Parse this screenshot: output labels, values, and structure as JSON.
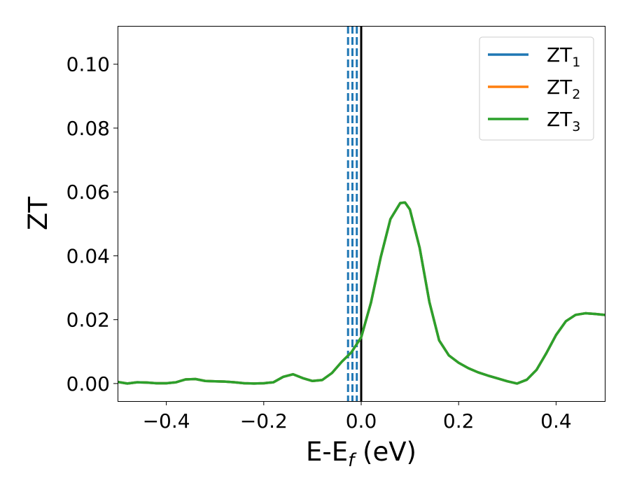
{
  "chart_data": {
    "type": "line",
    "xlabel": "E-E",
    "xlabel_subscript": "f",
    "xlabel_unit": " (eV)",
    "ylabel": "ZT",
    "xlim": [
      -0.5,
      0.5
    ],
    "ylim": [
      -0.0055,
      0.112
    ],
    "x_ticks": [
      -0.4,
      -0.2,
      0.0,
      0.2,
      0.4
    ],
    "x_tick_labels": [
      "−0.4",
      "−0.2",
      "0.0",
      "0.2",
      "0.4"
    ],
    "y_ticks": [
      0.0,
      0.02,
      0.04,
      0.06,
      0.08,
      0.1
    ],
    "y_tick_labels": [
      "0.00",
      "0.02",
      "0.04",
      "0.06",
      "0.08",
      "0.10"
    ],
    "grid": false,
    "legend_position": "top-right",
    "series": [
      {
        "name": "ZT",
        "subscript": "1",
        "color": "#1f77b4",
        "x": [
          -0.5,
          -0.48,
          -0.46,
          -0.44,
          -0.42,
          -0.4,
          -0.38,
          -0.36,
          -0.34,
          -0.32,
          -0.3,
          -0.28,
          -0.26,
          -0.24,
          -0.22,
          -0.2,
          -0.18,
          -0.16,
          -0.14,
          -0.12,
          -0.1,
          -0.08,
          -0.06,
          -0.04,
          -0.02,
          0.0,
          0.02,
          0.04,
          0.06,
          0.08,
          0.09,
          0.1,
          0.12,
          0.14,
          0.16,
          0.18,
          0.2,
          0.22,
          0.24,
          0.26,
          0.28,
          0.3,
          0.32,
          0.34,
          0.36,
          0.38,
          0.4,
          0.42,
          0.44,
          0.46,
          0.48,
          0.5
        ],
        "y": [
          0.0005,
          0.0,
          0.0004,
          0.0003,
          0.0001,
          0.0001,
          0.0004,
          0.0013,
          0.0014,
          0.0008,
          0.0007,
          0.0006,
          0.0004,
          0.0001,
          0.0,
          0.0001,
          0.0004,
          0.0021,
          0.0029,
          0.0017,
          0.0008,
          0.0011,
          0.0033,
          0.0068,
          0.0098,
          0.0145,
          0.0253,
          0.0395,
          0.0515,
          0.0565,
          0.0567,
          0.0545,
          0.0425,
          0.0255,
          0.0135,
          0.0088,
          0.0065,
          0.0048,
          0.0035,
          0.0025,
          0.0016,
          0.0007,
          0.0,
          0.0012,
          0.0043,
          0.0095,
          0.0152,
          0.0195,
          0.0215,
          0.022,
          0.0218,
          0.0215
        ]
      },
      {
        "name": "ZT",
        "subscript": "2",
        "color": "#ff7f0e",
        "x": [
          -0.5,
          -0.48,
          -0.46,
          -0.44,
          -0.42,
          -0.4,
          -0.38,
          -0.36,
          -0.34,
          -0.32,
          -0.3,
          -0.28,
          -0.26,
          -0.24,
          -0.22,
          -0.2,
          -0.18,
          -0.16,
          -0.14,
          -0.12,
          -0.1,
          -0.08,
          -0.06,
          -0.04,
          -0.02,
          0.0,
          0.02,
          0.04,
          0.06,
          0.08,
          0.09,
          0.1,
          0.12,
          0.14,
          0.16,
          0.18,
          0.2,
          0.22,
          0.24,
          0.26,
          0.28,
          0.3,
          0.32,
          0.34,
          0.36,
          0.38,
          0.4,
          0.42,
          0.44,
          0.46,
          0.48,
          0.5
        ],
        "y": [
          0.0005,
          0.0,
          0.0004,
          0.0003,
          0.0001,
          0.0001,
          0.0004,
          0.0013,
          0.0014,
          0.0008,
          0.0007,
          0.0006,
          0.0004,
          0.0001,
          0.0,
          0.0001,
          0.0004,
          0.0021,
          0.0029,
          0.0017,
          0.0008,
          0.0011,
          0.0033,
          0.0068,
          0.0098,
          0.0145,
          0.0253,
          0.0395,
          0.0515,
          0.0565,
          0.0567,
          0.0545,
          0.0425,
          0.0255,
          0.0135,
          0.0088,
          0.0065,
          0.0048,
          0.0035,
          0.0025,
          0.0016,
          0.0007,
          0.0,
          0.0012,
          0.0043,
          0.0095,
          0.0152,
          0.0195,
          0.0215,
          0.022,
          0.0218,
          0.0215
        ]
      },
      {
        "name": "ZT",
        "subscript": "3",
        "color": "#2ca02c",
        "x": [
          -0.5,
          -0.48,
          -0.46,
          -0.44,
          -0.42,
          -0.4,
          -0.38,
          -0.36,
          -0.34,
          -0.32,
          -0.3,
          -0.28,
          -0.26,
          -0.24,
          -0.22,
          -0.2,
          -0.18,
          -0.16,
          -0.14,
          -0.12,
          -0.1,
          -0.08,
          -0.06,
          -0.04,
          -0.02,
          0.0,
          0.02,
          0.04,
          0.06,
          0.08,
          0.09,
          0.1,
          0.12,
          0.14,
          0.16,
          0.18,
          0.2,
          0.22,
          0.24,
          0.26,
          0.28,
          0.3,
          0.32,
          0.34,
          0.36,
          0.38,
          0.4,
          0.42,
          0.44,
          0.46,
          0.48,
          0.5
        ],
        "y": [
          0.0005,
          0.0,
          0.0004,
          0.0003,
          0.0001,
          0.0001,
          0.0004,
          0.0013,
          0.0014,
          0.0008,
          0.0007,
          0.0006,
          0.0004,
          0.0001,
          0.0,
          0.0001,
          0.0004,
          0.0021,
          0.0029,
          0.0017,
          0.0008,
          0.0011,
          0.0033,
          0.0068,
          0.0098,
          0.0145,
          0.0253,
          0.0395,
          0.0515,
          0.0565,
          0.0567,
          0.0545,
          0.0425,
          0.0255,
          0.0135,
          0.0088,
          0.0065,
          0.0048,
          0.0035,
          0.0025,
          0.0016,
          0.0007,
          0.0,
          0.0012,
          0.0043,
          0.0095,
          0.0152,
          0.0195,
          0.0215,
          0.022,
          0.0218,
          0.0215
        ]
      }
    ],
    "reference_lines": [
      {
        "x": -0.027,
        "style": "dashed",
        "color": "#1f77b4"
      },
      {
        "x": -0.018,
        "style": "dashed",
        "color": "#1f77b4"
      },
      {
        "x": -0.009,
        "style": "dashed",
        "color": "#1f77b4"
      },
      {
        "x": 0.0,
        "style": "solid",
        "color": "#000000"
      }
    ]
  }
}
